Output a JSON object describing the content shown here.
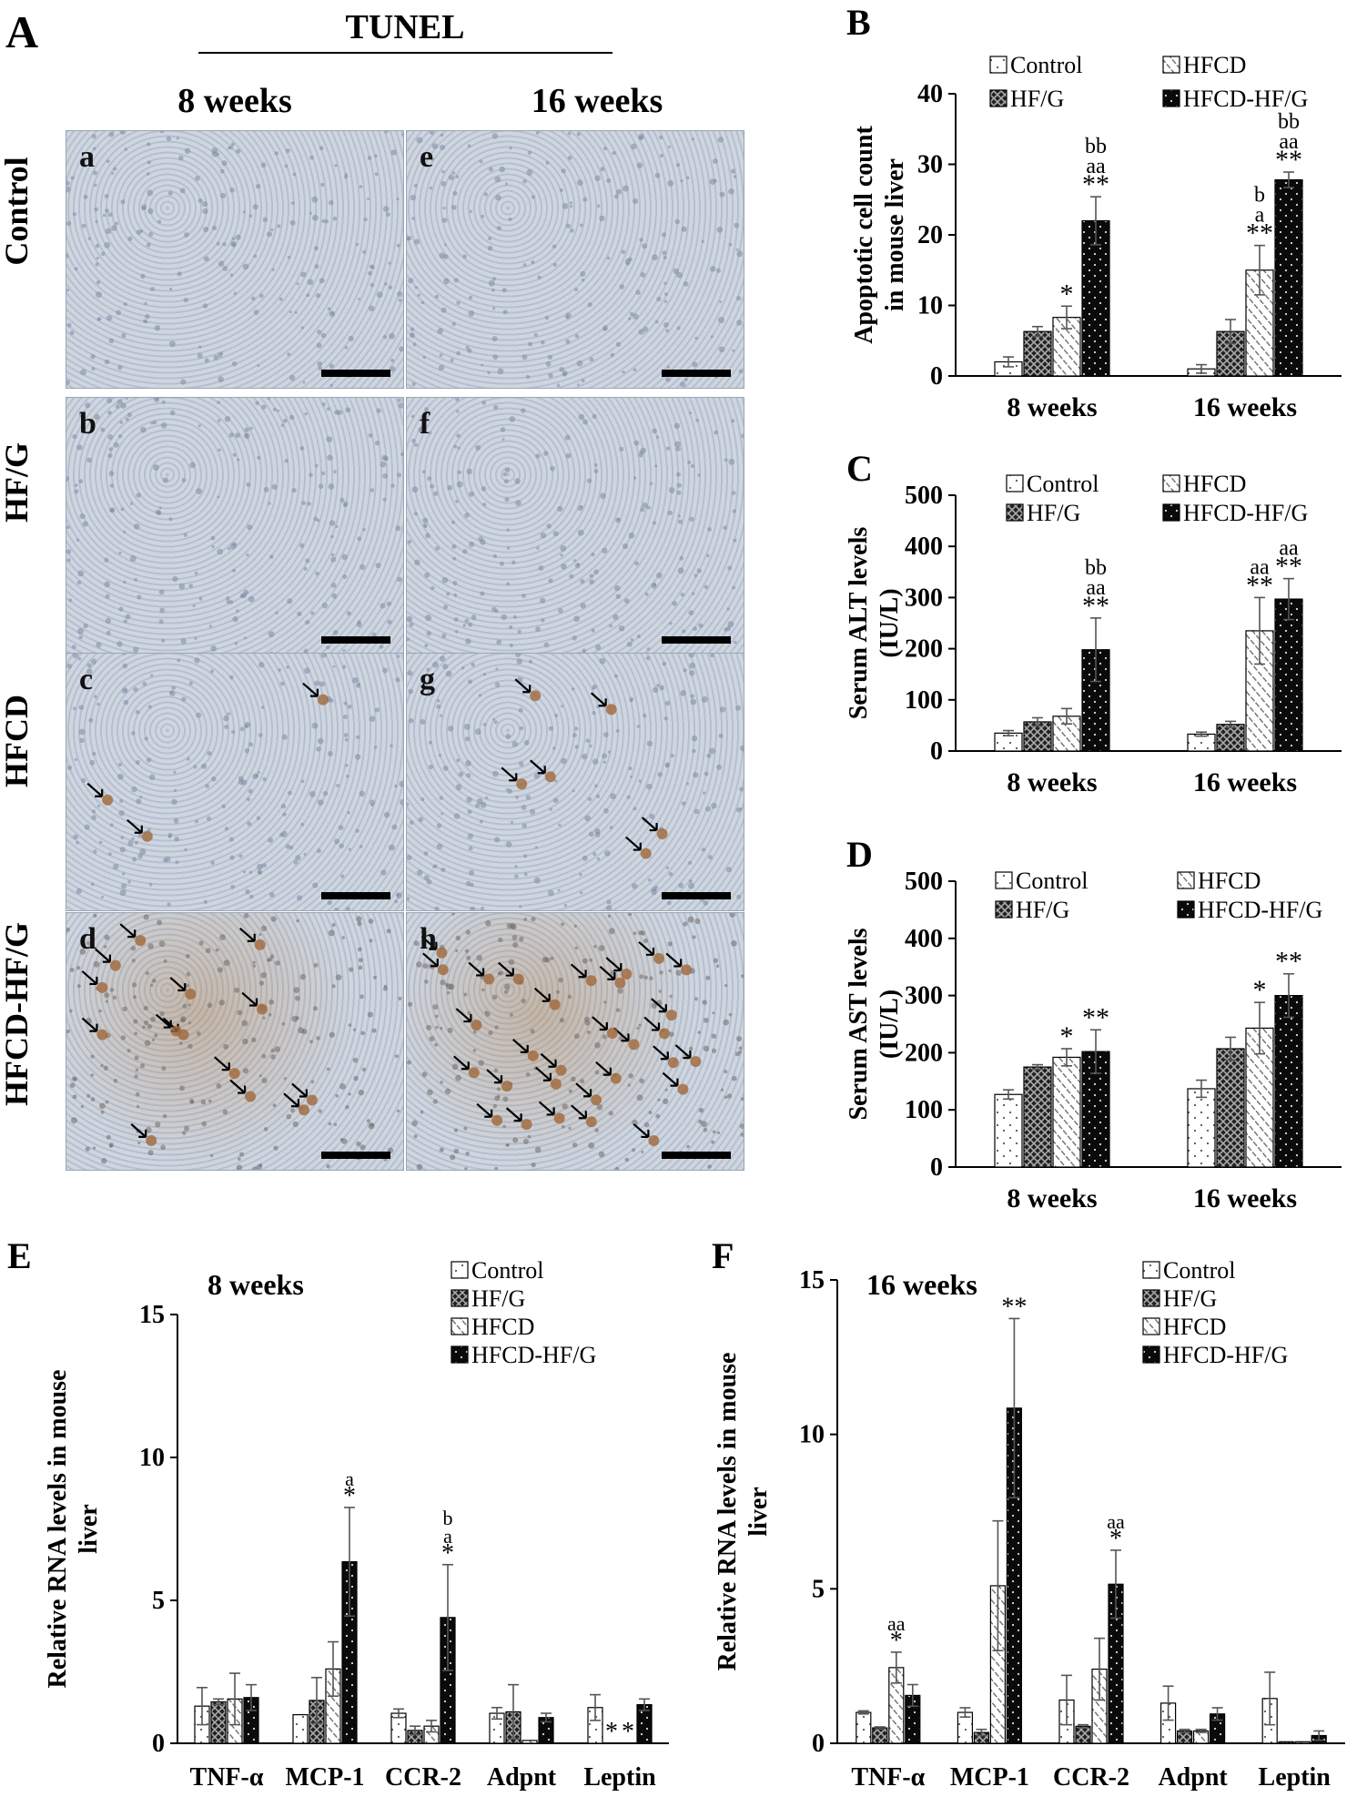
{
  "panel_letters": {
    "A": "A",
    "B": "B",
    "C": "C",
    "D": "D",
    "E": "E",
    "F": "F"
  },
  "panel_A": {
    "title": "TUNEL",
    "col_headers": [
      "8 weeks",
      "16 weeks"
    ],
    "row_labels": [
      "Control",
      "HF/G",
      "HFCD",
      "HFCD-HF/G"
    ],
    "tile_letters": [
      [
        "a",
        "e"
      ],
      [
        "b",
        "f"
      ],
      [
        "c",
        "g"
      ],
      [
        "d",
        "h"
      ]
    ],
    "tile_arrows": [
      [
        0,
        0
      ],
      [
        0,
        0
      ],
      [
        3,
        6
      ],
      [
        14,
        30
      ]
    ]
  },
  "legend_entries": [
    "Control",
    "HF/G",
    "HFCD",
    "HFCD-HF/G"
  ],
  "colors": {
    "control": "#ffffff",
    "hfg": "#555555",
    "hfcd": "#cfcfcf",
    "hfcdhfg": "#111111",
    "tissue": "#c6cfdb",
    "stain": "#a0683a"
  },
  "chart_data": [
    {
      "panel": "B",
      "type": "bar",
      "categories": [
        "8 weeks",
        "16 weeks"
      ],
      "ylabel": [
        "Apoptotic cell count",
        "in mouse liver"
      ],
      "ylim": [
        0,
        40
      ],
      "yticks": [
        0,
        10,
        20,
        30,
        40
      ],
      "series": [
        {
          "name": "Control",
          "values": [
            2,
            1
          ],
          "errors": [
            0.7,
            0.6
          ]
        },
        {
          "name": "HF/G",
          "values": [
            6.3,
            6.3
          ],
          "errors": [
            0.7,
            1.7
          ]
        },
        {
          "name": "HFCD",
          "values": [
            8.3,
            15
          ],
          "errors": [
            1.6,
            3.5
          ]
        },
        {
          "name": "HFCD-HF/G",
          "values": [
            22,
            27.8
          ],
          "errors": [
            3.4,
            1.1
          ]
        }
      ],
      "annotations": [
        [
          "",
          "",
          "*",
          "bb\naa\n**"
        ],
        [
          "",
          "",
          "b\na\n**",
          "bb\naa\n**"
        ]
      ]
    },
    {
      "panel": "C",
      "type": "bar",
      "categories": [
        "8 weeks",
        "16 weeks"
      ],
      "ylabel": [
        "Serum ALT levels",
        "(IU/L)"
      ],
      "ylim": [
        0,
        500
      ],
      "yticks": [
        0,
        100,
        200,
        300,
        400,
        500
      ],
      "series": [
        {
          "name": "Control",
          "values": [
            35,
            33
          ],
          "errors": [
            5,
            4
          ]
        },
        {
          "name": "HF/G",
          "values": [
            57,
            52
          ],
          "errors": [
            8,
            6
          ]
        },
        {
          "name": "HFCD",
          "values": [
            68,
            235
          ],
          "errors": [
            15,
            65
          ]
        },
        {
          "name": "HFCD-HF/G",
          "values": [
            198,
            297
          ],
          "errors": [
            62,
            40
          ]
        }
      ],
      "annotations": [
        [
          "",
          "",
          "",
          "bb\naa\n**"
        ],
        [
          "",
          "",
          "aa\n**",
          "aa\n**"
        ]
      ]
    },
    {
      "panel": "D",
      "type": "bar",
      "categories": [
        "8 weeks",
        "16 weeks"
      ],
      "ylabel": [
        "Serum AST levels",
        "(IU/L)"
      ],
      "ylim": [
        0,
        500
      ],
      "yticks": [
        0,
        100,
        200,
        300,
        400,
        500
      ],
      "series": [
        {
          "name": "Control",
          "values": [
            127,
            137
          ],
          "errors": [
            8,
            15
          ]
        },
        {
          "name": "HF/G",
          "values": [
            175,
            207
          ],
          "errors": [
            4,
            20
          ]
        },
        {
          "name": "HFCD",
          "values": [
            192,
            243
          ],
          "errors": [
            15,
            45
          ]
        },
        {
          "name": "HFCD-HF/G",
          "values": [
            202,
            300
          ],
          "errors": [
            38,
            38
          ]
        }
      ],
      "annotations": [
        [
          "",
          "",
          "*",
          "**"
        ],
        [
          "",
          "",
          "*",
          "**"
        ]
      ]
    },
    {
      "panel": "E",
      "type": "bar",
      "subtitle": "8 weeks",
      "categories": [
        "TNF-α",
        "MCP-1",
        "CCR-2",
        "Adpnt",
        "Leptin"
      ],
      "ylabel": [
        "Relative RNA levels in mouse",
        "liver"
      ],
      "ylim": [
        0,
        15
      ],
      "yticks": [
        0,
        5,
        10,
        15
      ],
      "series": [
        {
          "name": "Control",
          "values": [
            1.3,
            1.0,
            1.05,
            1.05,
            1.25
          ],
          "errors": [
            0.65,
            0,
            0.15,
            0.2,
            0.45
          ]
        },
        {
          "name": "HF/G",
          "values": [
            1.45,
            1.5,
            0.45,
            1.1,
            0
          ],
          "errors": [
            0.1,
            0.8,
            0.15,
            0.95,
            0
          ]
        },
        {
          "name": "HFCD",
          "values": [
            1.55,
            2.6,
            0.6,
            0.1,
            0
          ],
          "errors": [
            0.9,
            0.95,
            0.2,
            0,
            0
          ]
        },
        {
          "name": "HFCD-HF/G",
          "values": [
            1.6,
            6.35,
            4.4,
            0.9,
            1.35
          ],
          "errors": [
            0.45,
            1.9,
            1.85,
            0.15,
            0.2
          ]
        }
      ],
      "annotations": [
        [
          "",
          "",
          "",
          ""
        ],
        [
          "",
          "",
          "",
          "a\n*"
        ],
        [
          "",
          "",
          "",
          "b\na\n*"
        ],
        [
          "",
          "",
          "",
          ""
        ],
        [
          "",
          "*",
          "*",
          ""
        ]
      ]
    },
    {
      "panel": "F",
      "type": "bar",
      "subtitle": "16 weeks",
      "categories": [
        "TNF-α",
        "MCP-1",
        "CCR-2",
        "Adpnt",
        "Leptin"
      ],
      "ylabel": [
        "Relative RNA levels in mouse",
        "liver"
      ],
      "ylim": [
        0,
        15
      ],
      "yticks": [
        0,
        5,
        10,
        15
      ],
      "series": [
        {
          "name": "Control",
          "values": [
            1.0,
            1.0,
            1.4,
            1.3,
            1.45
          ],
          "errors": [
            0.05,
            0.15,
            0.8,
            0.55,
            0.85
          ]
        },
        {
          "name": "HF/G",
          "values": [
            0.5,
            0.35,
            0.55,
            0.4,
            0.05
          ],
          "errors": [
            0.03,
            0.1,
            0.05,
            0.05,
            0
          ]
        },
        {
          "name": "HFCD",
          "values": [
            2.45,
            5.1,
            2.4,
            0.4,
            0.05
          ],
          "errors": [
            0.5,
            2.1,
            1.0,
            0.05,
            0
          ]
        },
        {
          "name": "HFCD-HF/G",
          "values": [
            1.55,
            10.85,
            5.15,
            0.95,
            0.25
          ],
          "errors": [
            0.35,
            2.9,
            1.1,
            0.2,
            0.15
          ]
        }
      ],
      "annotations": [
        [
          "",
          "",
          "aa\n*",
          ""
        ],
        [
          "",
          "",
          "",
          "**"
        ],
        [
          "",
          "",
          "",
          "aa\n*"
        ],
        [
          "",
          "",
          "",
          ""
        ],
        [
          "",
          "",
          "",
          ""
        ]
      ]
    }
  ]
}
